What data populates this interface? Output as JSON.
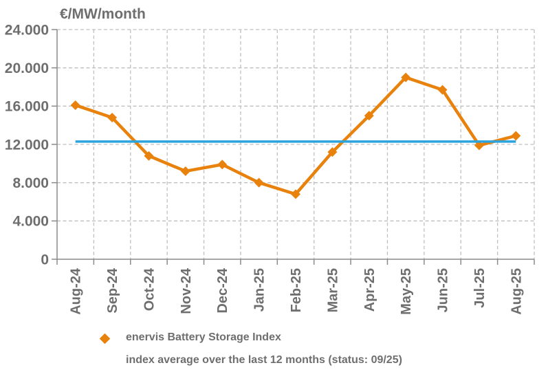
{
  "chart_data": {
    "type": "line",
    "title": "€/MW/month",
    "categories": [
      "Aug-24",
      "Sep-24",
      "Oct-24",
      "Nov-24",
      "Dec-24",
      "Jan-25",
      "Feb-25",
      "Mar-25",
      "Apr-25",
      "May-25",
      "Jun-25",
      "Jul-25",
      "Aug-25"
    ],
    "series": [
      {
        "name": "enervis Battery Storage Index",
        "type": "line-with-diamond-markers",
        "color": "#e8820d",
        "values": [
          16100,
          14800,
          10800,
          9200,
          9900,
          8000,
          6800,
          11200,
          15000,
          19000,
          17700,
          11900,
          12900
        ]
      },
      {
        "name": "index average over the last 12 months (status: 09/25)",
        "type": "horizontal-average-line",
        "color": "#2ba3dc",
        "value": 12300
      }
    ],
    "ylim": [
      0,
      24000
    ],
    "ytick_step": 4000,
    "ytick_labels": [
      "0",
      "4.000",
      "8.000",
      "12.000",
      "16.000",
      "20.000",
      "24.000"
    ],
    "grid": "dashed-both-axes",
    "legend_position": "bottom-left"
  },
  "colors": {
    "series_orange": "#e8820d",
    "average_blue": "#2ba3dc",
    "label_gray": "#6e6e6e",
    "axis_gray": "#8a8a8a",
    "grid_gray": "#bfbfbf",
    "background": "#ffffff"
  }
}
